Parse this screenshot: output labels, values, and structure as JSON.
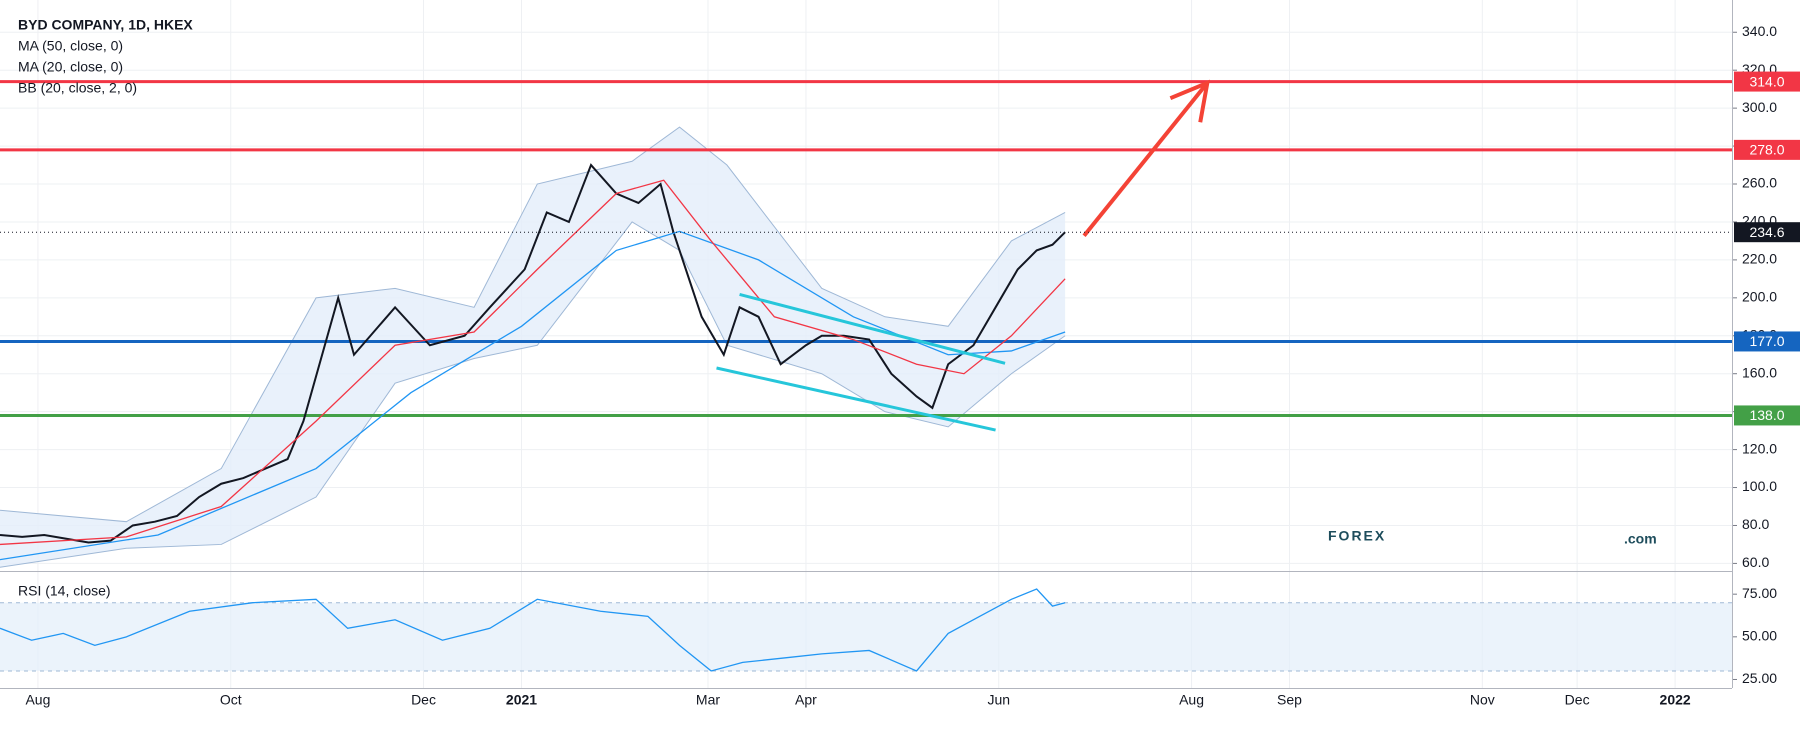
{
  "chart_data": [
    {
      "type": "line",
      "title": "BYD COMPANY, 1D, HKEX",
      "xlim": [
        0,
        548
      ],
      "xticks": [
        {
          "value": 12,
          "label": "Aug"
        },
        {
          "value": 73,
          "label": "Oct"
        },
        {
          "value": 134,
          "label": "Dec"
        },
        {
          "value": 165,
          "label": "2021"
        },
        {
          "value": 224,
          "label": "Mar"
        },
        {
          "value": 255,
          "label": "Apr"
        },
        {
          "value": 316,
          "label": "Jun"
        },
        {
          "value": 377,
          "label": "Aug"
        },
        {
          "value": 408,
          "label": "Sep"
        },
        {
          "value": 469,
          "label": "Nov"
        },
        {
          "value": 499,
          "label": "Dec"
        },
        {
          "value": 530,
          "label": "2022"
        }
      ],
      "ylim": [
        56,
        357
      ],
      "yticks": [
        {
          "value": 60,
          "label": "60.0"
        },
        {
          "value": 80,
          "label": "80.0"
        },
        {
          "value": 100,
          "label": "100.0"
        },
        {
          "value": 120,
          "label": "120.0"
        },
        {
          "value": 140,
          "label": "140.0"
        },
        {
          "value": 160,
          "label": "160.0"
        },
        {
          "value": 180,
          "label": "180.0"
        },
        {
          "value": 200,
          "label": "200.0"
        },
        {
          "value": 220,
          "label": "220.0"
        },
        {
          "value": 240,
          "label": "240.0"
        },
        {
          "value": 260,
          "label": "260.0"
        },
        {
          "value": 280,
          "label": "280.0"
        },
        {
          "value": 300,
          "label": "300.0"
        },
        {
          "value": 320,
          "label": "320.0"
        },
        {
          "value": 340,
          "label": "340.0"
        }
      ],
      "grid": true,
      "series": [
        {
          "color": "#131722",
          "x": [
            0,
            7,
            14,
            21,
            28,
            35,
            42,
            49,
            56,
            63,
            70,
            77,
            84,
            91,
            96,
            107,
            112,
            125,
            136,
            147,
            155,
            166,
            173,
            180,
            187,
            195,
            202,
            209,
            213,
            217,
            222,
            229,
            234,
            240,
            247,
            255,
            260,
            267,
            275,
            282,
            290,
            295,
            300,
            308,
            315,
            322,
            328,
            333,
            337
          ],
          "values": [
            75,
            74,
            75,
            73,
            71,
            72,
            80,
            82,
            85,
            95,
            102,
            105,
            110,
            115,
            135,
            200,
            170,
            195,
            175,
            180,
            195,
            215,
            245,
            240,
            270,
            255,
            250,
            260,
            235,
            215,
            190,
            170,
            195,
            190,
            165,
            175,
            180,
            180,
            178,
            160,
            148,
            142,
            165,
            175,
            195,
            215,
            225,
            228,
            234.6
          ]
        },
        {
          "name": "MA (50, close, 0)",
          "color": "#2196f3",
          "x": [
            0,
            50,
            100,
            130,
            165,
            195,
            215,
            240,
            270,
            300,
            320,
            337
          ],
          "values": [
            62,
            75,
            110,
            150,
            185,
            225,
            235,
            220,
            190,
            170,
            172,
            182
          ]
        },
        {
          "name": "MA (20, close, 0)",
          "color": "#f23645",
          "x": [
            0,
            40,
            70,
            100,
            125,
            150,
            170,
            195,
            210,
            225,
            245,
            270,
            290,
            305,
            320,
            337
          ],
          "values": [
            70,
            74,
            90,
            135,
            175,
            182,
            215,
            255,
            262,
            230,
            190,
            178,
            165,
            160,
            180,
            210
          ]
        }
      ],
      "bands": [
        {
          "name": "BB (20, close, 2, 0)",
          "color": "#9fb8d6",
          "fill": "#e3eefa",
          "x": [
            0,
            40,
            70,
            100,
            125,
            150,
            170,
            200,
            215,
            230,
            260,
            280,
            300,
            320,
            337
          ],
          "upper": [
            88,
            82,
            110,
            200,
            205,
            195,
            260,
            272,
            290,
            270,
            205,
            190,
            185,
            230,
            245
          ],
          "lower": [
            58,
            68,
            70,
            95,
            155,
            168,
            175,
            240,
            225,
            175,
            160,
            140,
            132,
            160,
            180
          ]
        }
      ],
      "levels": [
        {
          "value": 314,
          "label": "314.0",
          "color": "#f23645"
        },
        {
          "value": 278,
          "label": "278.0",
          "color": "#f23645"
        },
        {
          "value": 177,
          "label": "177.0",
          "color": "#1565c0"
        },
        {
          "value": 138,
          "label": "138.0",
          "color": "#43a047"
        }
      ],
      "last_price": {
        "value": 234.6,
        "label": "234.6"
      },
      "trendlines": [
        {
          "color": "#26c6da",
          "x": [
            234,
            318
          ],
          "values": [
            201.8,
            165.5
          ]
        },
        {
          "color": "#26c6da",
          "x": [
            226.7,
            315
          ],
          "values": [
            163,
            130.3
          ]
        }
      ],
      "arrow": {
        "color": "#f44336",
        "x": [
          343,
          382
        ],
        "values": [
          232.7,
          313.3
        ]
      },
      "logo": {
        "text": "FOREX",
        "suffix": ".com"
      }
    },
    {
      "type": "line",
      "title": "RSI (14, close)",
      "ylim": [
        20,
        88
      ],
      "yticks": [
        {
          "value": 25,
          "label": "25.00"
        },
        {
          "value": 50,
          "label": "50.00"
        },
        {
          "value": 75,
          "label": "75.00"
        }
      ],
      "band": [
        30,
        70
      ],
      "series": [
        {
          "color": "#2196f3",
          "x": [
            0,
            10,
            20,
            30,
            40,
            60,
            80,
            100,
            110,
            125,
            140,
            155,
            170,
            190,
            205,
            215,
            225,
            235,
            250,
            260,
            275,
            290,
            300,
            310,
            320,
            328,
            333,
            337
          ],
          "values": [
            55,
            48,
            52,
            45,
            50,
            65,
            70,
            72,
            55,
            60,
            48,
            55,
            72,
            65,
            62,
            45,
            30,
            35,
            38,
            40,
            42,
            30,
            52,
            62,
            72,
            78,
            68,
            70
          ]
        }
      ]
    }
  ]
}
